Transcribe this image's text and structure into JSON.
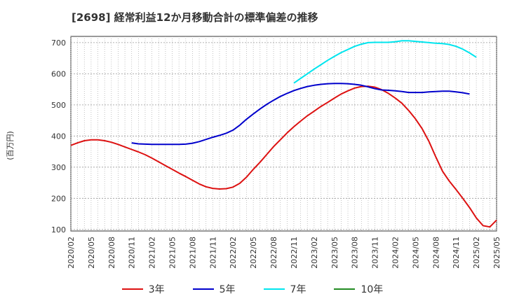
{
  "chart_data": {
    "type": "line",
    "title": "[2698]  経常利益12か月移動合計の標準偏差の推移",
    "ylabel": "(百万円)",
    "xlabel": "",
    "ylim": [
      95,
      720
    ],
    "yticks": [
      100,
      200,
      300,
      400,
      500,
      600,
      700
    ],
    "xticks": [
      "2020/02",
      "2020/05",
      "2020/08",
      "2020/11",
      "2021/02",
      "2021/05",
      "2021/08",
      "2021/11",
      "2022/02",
      "2022/05",
      "2022/08",
      "2022/11",
      "2023/02",
      "2023/05",
      "2023/08",
      "2023/11",
      "2024/02",
      "2024/05",
      "2024/08",
      "2024/11",
      "2025/02",
      "2025/05"
    ],
    "grid": true,
    "legend_position": "bottom",
    "series": [
      {
        "name": "3年",
        "color": "#dd1111",
        "values": [
          370,
          378,
          385,
          388,
          388,
          385,
          380,
          373,
          365,
          357,
          349,
          340,
          329,
          317,
          305,
          293,
          281,
          270,
          258,
          246,
          237,
          232,
          230,
          231,
          236,
          248,
          268,
          293,
          316,
          341,
          366,
          388,
          410,
          430,
          448,
          465,
          480,
          495,
          508,
          522,
          535,
          545,
          554,
          559,
          560,
          557,
          549,
          537,
          522,
          505,
          482,
          455,
          423,
          382,
          333,
          287,
          255,
          228,
          200,
          170,
          137,
          112,
          108,
          130
        ]
      },
      {
        "name": "5年",
        "color": "#0000cc",
        "offset": 9,
        "values": [
          378,
          375,
          374,
          373,
          373,
          373,
          373,
          373,
          374,
          377,
          382,
          389,
          396,
          402,
          409,
          419,
          435,
          454,
          471,
          487,
          502,
          515,
          527,
          537,
          546,
          553,
          559,
          563,
          566,
          568,
          569,
          569,
          568,
          566,
          563,
          558,
          552,
          548,
          547,
          545,
          543,
          540,
          540,
          540,
          542,
          543,
          544,
          544,
          542,
          539,
          535
        ]
      },
      {
        "name": "7年",
        "color": "#00e5ee",
        "offset": 33,
        "values": [
          570,
          585,
          600,
          615,
          629,
          643,
          656,
          668,
          678,
          688,
          695,
          700,
          701,
          701,
          701,
          703,
          706,
          706,
          704,
          702,
          700,
          698,
          697,
          694,
          688,
          679,
          667,
          653
        ]
      },
      {
        "name": "10年",
        "color": "#228b22",
        "values": []
      }
    ]
  }
}
